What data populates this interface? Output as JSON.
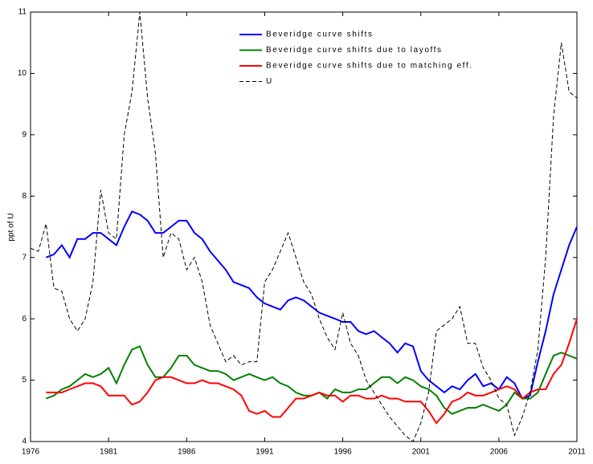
{
  "chart_data": {
    "type": "line",
    "y_label": "ppt of U",
    "x": [
      1976,
      1976.5,
      1977,
      1977.5,
      1978,
      1978.5,
      1979,
      1979.5,
      1980,
      1980.5,
      1981,
      1981.5,
      1982,
      1982.5,
      1983,
      1983.5,
      1984,
      1984.5,
      1985,
      1985.5,
      1986,
      1986.5,
      1987,
      1987.5,
      1988,
      1988.5,
      1989,
      1989.5,
      1990,
      1990.5,
      1991,
      1991.5,
      1992,
      1992.5,
      1993,
      1993.5,
      1994,
      1994.5,
      1995,
      1995.5,
      1996,
      1996.5,
      1997,
      1997.5,
      1998,
      1998.5,
      1999,
      1999.5,
      2000,
      2000.5,
      2001,
      2001.5,
      2002,
      2002.5,
      2003,
      2003.5,
      2004,
      2004.5,
      2005,
      2005.5,
      2006,
      2006.5,
      2007,
      2007.5,
      2008,
      2008.5,
      2009,
      2009.5,
      2010,
      2010.5,
      2011
    ],
    "series": [
      {
        "name": "Beveridge curve shifts",
        "color": "#0000ff",
        "dash": false,
        "values": [
          null,
          null,
          7.0,
          7.05,
          7.2,
          7.0,
          7.3,
          7.3,
          7.4,
          7.4,
          7.3,
          7.2,
          7.5,
          7.75,
          7.7,
          7.6,
          7.4,
          7.4,
          7.5,
          7.6,
          7.6,
          7.4,
          7.3,
          7.1,
          6.95,
          6.8,
          6.6,
          6.55,
          6.5,
          6.35,
          6.25,
          6.2,
          6.15,
          6.3,
          6.35,
          6.3,
          6.2,
          6.1,
          6.05,
          6.0,
          5.95,
          5.95,
          5.8,
          5.75,
          5.8,
          5.7,
          5.6,
          5.45,
          5.6,
          5.55,
          5.15,
          5.0,
          4.9,
          4.8,
          4.9,
          4.85,
          5.0,
          5.1,
          4.9,
          4.95,
          4.85,
          5.05,
          4.95,
          4.7,
          4.75,
          5.3,
          5.8,
          6.4,
          6.8,
          7.2,
          7.5
        ]
      },
      {
        "name": "Beveridge curve shifts due to layoffs",
        "color": "#008000",
        "dash": false,
        "values": [
          null,
          null,
          4.7,
          4.75,
          4.85,
          4.9,
          5.0,
          5.1,
          5.05,
          5.1,
          5.2,
          4.95,
          5.25,
          5.5,
          5.55,
          5.25,
          5.05,
          5.05,
          5.2,
          5.4,
          5.4,
          5.25,
          5.2,
          5.15,
          5.15,
          5.1,
          5.0,
          5.05,
          5.1,
          5.05,
          5.0,
          5.05,
          4.95,
          4.9,
          4.8,
          4.75,
          4.75,
          4.8,
          4.7,
          4.85,
          4.8,
          4.8,
          4.85,
          4.85,
          4.95,
          5.05,
          5.05,
          4.95,
          5.05,
          5.0,
          4.9,
          4.85,
          4.75,
          4.55,
          4.45,
          4.5,
          4.55,
          4.55,
          4.6,
          4.55,
          4.5,
          4.6,
          4.8,
          4.7,
          4.7,
          4.8,
          5.1,
          5.4,
          5.45,
          5.4,
          5.35
        ]
      },
      {
        "name": "Beveridge curve shifts due to matching eff.",
        "color": "#ff0000",
        "dash": false,
        "values": [
          null,
          null,
          4.8,
          4.8,
          4.8,
          4.85,
          4.9,
          4.95,
          4.95,
          4.9,
          4.75,
          4.75,
          4.75,
          4.6,
          4.65,
          4.8,
          5.0,
          5.05,
          5.05,
          5.0,
          4.95,
          4.95,
          5.0,
          4.95,
          4.95,
          4.9,
          4.85,
          4.75,
          4.5,
          4.45,
          4.5,
          4.4,
          4.4,
          4.55,
          4.7,
          4.7,
          4.75,
          4.8,
          4.75,
          4.75,
          4.65,
          4.75,
          4.75,
          4.7,
          4.7,
          4.75,
          4.7,
          4.7,
          4.65,
          4.65,
          4.65,
          4.5,
          4.3,
          4.45,
          4.65,
          4.7,
          4.8,
          4.75,
          4.75,
          4.8,
          4.85,
          4.9,
          4.85,
          4.7,
          4.8,
          4.85,
          4.85,
          5.1,
          5.25,
          5.6,
          6.0
        ]
      },
      {
        "name": "U",
        "color": "#000000",
        "dash": true,
        "values": [
          7.15,
          7.1,
          7.55,
          6.5,
          6.45,
          6.0,
          5.8,
          6.0,
          6.6,
          8.1,
          7.4,
          7.3,
          9.0,
          9.7,
          11.0,
          9.6,
          8.7,
          7.0,
          7.4,
          7.3,
          6.8,
          7.0,
          6.6,
          5.9,
          5.6,
          5.3,
          5.4,
          5.25,
          5.3,
          5.3,
          6.6,
          6.8,
          7.1,
          7.4,
          7.0,
          6.6,
          6.4,
          6.0,
          5.7,
          5.5,
          6.1,
          5.6,
          5.4,
          5.0,
          4.8,
          4.6,
          4.4,
          4.25,
          4.1,
          4.0,
          4.3,
          4.8,
          5.8,
          5.9,
          6.0,
          6.2,
          5.6,
          5.6,
          5.2,
          5.0,
          4.7,
          4.6,
          4.1,
          4.4,
          4.8,
          5.5,
          7.0,
          9.3,
          10.5,
          9.7,
          9.6
        ]
      }
    ],
    "xlim": [
      1976,
      2011
    ],
    "xticks": [
      1976,
      1981,
      1986,
      1991,
      1996,
      2001,
      2006,
      2011
    ],
    "ylim": [
      4,
      11
    ],
    "yticks": [
      4,
      5,
      6,
      7,
      8,
      9,
      10,
      11
    ],
    "grid": false,
    "legend": "upper center"
  }
}
